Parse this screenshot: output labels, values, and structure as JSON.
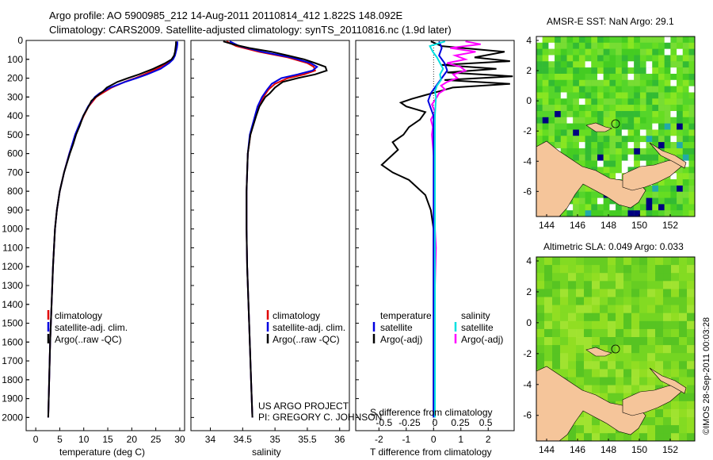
{
  "header": {
    "line1": "Argo profile: AO 5900985_212 14-Aug-2011 20110814_412 1.822S 148.092E",
    "line2": "Climatology: CARS2009. Satellite-adjusted climatology: synTS_20110816.nc (1.9d later)"
  },
  "colors": {
    "climatology": "#e00000",
    "satellite": "#0000e0",
    "argo": "#000000",
    "satellite_s": "#00e0e0",
    "argo_s": "#ff00ff",
    "land": "#f5c59a",
    "sea_dark": "#000080"
  },
  "depth_axis": {
    "ticks": [
      0,
      100,
      200,
      300,
      400,
      500,
      600,
      700,
      800,
      900,
      1000,
      1100,
      1200,
      1300,
      1400,
      1500,
      1600,
      1700,
      1800,
      1900,
      2000
    ]
  },
  "chart_data": [
    {
      "type": "line",
      "name": "temperature",
      "xlabel": "temperature (deg C)",
      "xlim": [
        -2,
        31
      ],
      "ylim": [
        0,
        2070
      ],
      "xticks": [
        0,
        5,
        10,
        15,
        20,
        25,
        30
      ],
      "legend": [
        "climatology",
        "satellite-adj. clim.",
        "Argo(..raw -QC)"
      ],
      "series": [
        {
          "name": "climatology",
          "depth": [
            5,
            20,
            40,
            60,
            80,
            100,
            120,
            150,
            180,
            200,
            220,
            250,
            280,
            300,
            350,
            400,
            450,
            500,
            600,
            700,
            800,
            900,
            1000,
            1200,
            1400,
            1600,
            1800,
            2000
          ],
          "values": [
            29.3,
            29.3,
            29.2,
            29.1,
            28.9,
            28.4,
            27.3,
            25.3,
            22.6,
            20.7,
            18.5,
            15.8,
            13.8,
            12.6,
            11.0,
            10.0,
            9.1,
            8.3,
            7.0,
            5.9,
            5.0,
            4.4,
            4.0,
            3.6,
            3.3,
            3.0,
            2.8,
            2.6
          ]
        },
        {
          "name": "satellite-adj. clim.",
          "depth": [
            5,
            20,
            40,
            60,
            80,
            100,
            120,
            150,
            180,
            200,
            220,
            250,
            280,
            300,
            350,
            400,
            450,
            500,
            600,
            700,
            800,
            900,
            1000,
            1200,
            1400,
            1600,
            1800,
            2000
          ],
          "values": [
            29.5,
            29.5,
            29.4,
            29.2,
            29.0,
            28.6,
            27.8,
            26.0,
            23.2,
            21.0,
            18.6,
            15.5,
            13.3,
            12.3,
            10.9,
            9.9,
            9.0,
            8.2,
            7.0,
            5.9,
            5.0,
            4.4,
            4.0,
            3.6,
            3.3,
            3.0,
            2.8,
            2.6
          ]
        },
        {
          "name": "Argo(..raw -QC)",
          "depth": [
            5,
            20,
            40,
            60,
            80,
            100,
            120,
            150,
            180,
            200,
            220,
            250,
            270,
            300,
            320,
            350,
            400,
            450,
            500,
            550,
            600,
            700,
            800,
            900,
            1000,
            1200,
            1400,
            1600,
            1800,
            2000
          ],
          "values": [
            29.2,
            29.2,
            29.1,
            29.0,
            28.8,
            28.3,
            27.0,
            24.5,
            21.5,
            19.2,
            17.0,
            14.8,
            14.0,
            12.5,
            11.6,
            11.0,
            9.9,
            9.2,
            8.4,
            7.8,
            7.1,
            5.9,
            5.0,
            4.4,
            4.0,
            3.6,
            3.3,
            3.0,
            2.8,
            2.6
          ]
        }
      ]
    },
    {
      "type": "line",
      "name": "salinity",
      "xlabel": "salinity",
      "xlim": [
        33.7,
        36.15
      ],
      "ylim": [
        0,
        2070
      ],
      "xticks": [
        34,
        34.5,
        35,
        35.5,
        36
      ],
      "legend": [
        "climatology",
        "satellite-adj. clim.",
        "Argo(..raw -QC)"
      ],
      "series": [
        {
          "name": "climatology",
          "depth": [
            5,
            30,
            60,
            90,
            120,
            140,
            160,
            180,
            200,
            230,
            260,
            300,
            350,
            400,
            500,
            600,
            700,
            800,
            1000,
            1200,
            1500,
            1800,
            2000
          ],
          "values": [
            34.25,
            34.4,
            34.75,
            35.2,
            35.5,
            35.6,
            35.62,
            35.45,
            35.2,
            35.0,
            34.9,
            34.82,
            34.75,
            34.7,
            34.62,
            34.58,
            34.57,
            34.56,
            34.56,
            34.57,
            34.6,
            34.63,
            34.65
          ]
        },
        {
          "name": "satellite-adj. clim.",
          "depth": [
            5,
            30,
            60,
            90,
            120,
            140,
            160,
            180,
            200,
            230,
            260,
            300,
            350,
            400,
            500,
            600,
            700,
            800,
            1000,
            1200,
            1500,
            1800,
            2000
          ],
          "values": [
            34.3,
            34.45,
            34.8,
            35.25,
            35.55,
            35.65,
            35.58,
            35.35,
            35.1,
            34.95,
            34.88,
            34.8,
            34.73,
            34.69,
            34.61,
            34.58,
            34.57,
            34.56,
            34.56,
            34.57,
            34.6,
            34.63,
            34.65
          ]
        },
        {
          "name": "Argo(..raw -QC)",
          "depth": [
            5,
            20,
            40,
            60,
            80,
            100,
            120,
            140,
            160,
            180,
            200,
            220,
            250,
            280,
            300,
            350,
            400,
            500,
            600,
            700,
            800,
            1000,
            1200,
            1500,
            1800,
            2000
          ],
          "values": [
            34.2,
            34.35,
            34.6,
            34.95,
            35.2,
            35.45,
            35.62,
            35.78,
            35.8,
            35.62,
            35.35,
            35.12,
            35.0,
            34.92,
            34.85,
            34.76,
            34.71,
            34.62,
            34.58,
            34.57,
            34.56,
            34.56,
            34.57,
            34.6,
            34.63,
            34.65
          ]
        }
      ]
    },
    {
      "type": "line",
      "name": "difference",
      "xlabel_bottom": "T difference from climatology",
      "xlabel_top": "S difference from climatology",
      "t_xlim": [
        -2.85,
        2.95
      ],
      "s_xlim": [
        -0.78,
        0.78
      ],
      "t_xticks": [
        "-2",
        "-1",
        "0",
        "1",
        "2"
      ],
      "s_xticks": [
        "-0.5",
        "-0.25",
        "0",
        "0.25",
        "0.5"
      ],
      "ylim": [
        0,
        2070
      ],
      "legend_headers": [
        "temperature",
        "salinity"
      ],
      "legend": [
        "satellite",
        "Argo(-adj)",
        "satellite",
        "Argo(-adj)"
      ],
      "series": [
        {
          "name": "T satellite",
          "var": "T",
          "depth": [
            5,
            40,
            80,
            120,
            160,
            200,
            240,
            280,
            320,
            360,
            400,
            500,
            700,
            1000,
            1500,
            2000
          ],
          "values": [
            0.2,
            0.3,
            0.2,
            0.4,
            0.5,
            0.3,
            0.1,
            -0.1,
            -0.2,
            -0.1,
            0.0,
            0.0,
            0.0,
            0.0,
            0.0,
            0.0
          ]
        },
        {
          "name": "T Argo(-adj)",
          "var": "T",
          "depth": [
            5,
            30,
            60,
            90,
            110,
            130,
            150,
            170,
            190,
            210,
            230,
            250,
            270,
            290,
            310,
            330,
            350,
            380,
            420,
            460,
            500,
            540,
            580,
            620,
            660,
            700,
            740,
            780,
            820,
            900,
            1000,
            1200,
            1400,
            1700,
            2000
          ],
          "values": [
            -0.1,
            0.3,
            2.6,
            1.5,
            2.8,
            0.3,
            2.3,
            0.5,
            2.9,
            0.4,
            2.8,
            0.7,
            0.2,
            -0.3,
            -0.8,
            -1.2,
            -1.0,
            -0.3,
            -0.5,
            -0.9,
            -1.1,
            -1.5,
            -1.3,
            -1.6,
            -1.9,
            -1.5,
            -0.9,
            -0.6,
            -0.3,
            -0.1,
            0.0,
            0.0,
            0.0,
            0.0,
            0.0
          ]
        },
        {
          "name": "S satellite",
          "var": "S",
          "depth": [
            5,
            30,
            60,
            90,
            120,
            150,
            180,
            210,
            240,
            270,
            300,
            400,
            500,
            700,
            1000,
            1500,
            2000
          ],
          "values": [
            0.1,
            -0.05,
            -0.02,
            0.02,
            0.05,
            0.08,
            0.05,
            0.06,
            0.02,
            0.0,
            0.01,
            0.0,
            0.0,
            0.0,
            0.0,
            0.0,
            0.0
          ]
        },
        {
          "name": "S Argo(-adj)",
          "var": "S",
          "depth": [
            5,
            20,
            40,
            60,
            80,
            100,
            120,
            140,
            160,
            180,
            200,
            220,
            240,
            260,
            280,
            300,
            340,
            380,
            420,
            460,
            500,
            560,
            620,
            700,
            800,
            1000,
            1100,
            1300,
            1600,
            2000
          ],
          "values": [
            0.3,
            0.45,
            0.15,
            0.4,
            0.2,
            0.3,
            0.12,
            0.25,
            0.3,
            0.18,
            0.22,
            0.12,
            0.06,
            0.1,
            0.04,
            0.02,
            -0.03,
            0.0,
            -0.04,
            -0.02,
            -0.03,
            -0.02,
            -0.01,
            0.0,
            0.0,
            0.0,
            0.01,
            0.0,
            0.0,
            0.0
          ]
        }
      ]
    }
  ],
  "sst_map": {
    "title": "AMSR-E SST: NaN Argo: 29.1",
    "xticks": [
      "144",
      "146",
      "148",
      "150",
      "152"
    ],
    "yticks": [
      "4",
      "2",
      "0",
      "-2",
      "-4",
      "-6"
    ]
  },
  "sla_map": {
    "title": "Altimetric SLA: 0.049 Argo: 0.033",
    "xticks": [
      "144",
      "146",
      "148",
      "150",
      "152"
    ],
    "yticks": [
      "4",
      "2",
      "0",
      "-2",
      "-4",
      "-6"
    ]
  },
  "project": {
    "line1": "US ARGO PROJECT",
    "line2": "PI: GREGORY C. JOHNSON"
  },
  "credit": "©IMOS 28-Sep-2011 00:03:28"
}
